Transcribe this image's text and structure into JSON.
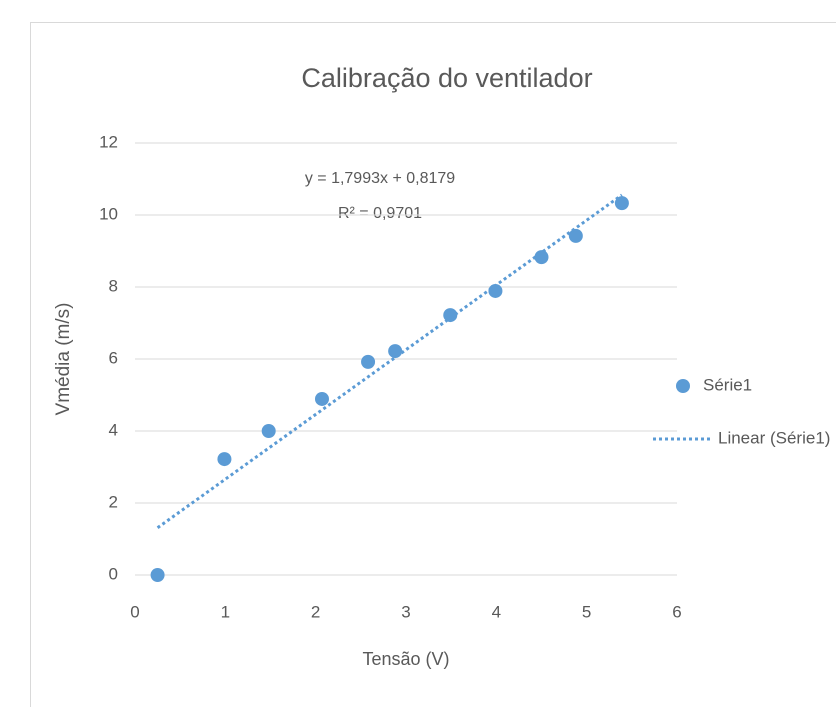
{
  "chart_data": {
    "type": "scatter",
    "title": "Calibração do ventilador",
    "x_label": "Tensão (V)",
    "y_label": "Vmédia (m/s)",
    "series": [
      {
        "name": "Série1",
        "color": "#5b9bd5",
        "x": [
          0.25,
          0.99,
          1.48,
          2.07,
          2.58,
          2.88,
          3.49,
          3.99,
          4.5,
          4.88,
          5.39
        ],
        "y": [
          0,
          3.22,
          4.0,
          4.89,
          5.92,
          6.22,
          7.22,
          7.89,
          8.83,
          9.42,
          10.33
        ]
      }
    ],
    "trendline": {
      "name": "Linear (Série1)",
      "kind": "linear",
      "color": "#5b9bd5",
      "equation": "y = 1,7993x + 0,8179",
      "r_squared": "R² = 0,9701"
    },
    "xlim": [
      0,
      6
    ],
    "xticks": [
      0,
      1,
      2,
      3,
      4,
      5,
      6
    ],
    "ylim": [
      0,
      12
    ],
    "yticks": [
      0,
      2,
      4,
      6,
      8,
      10,
      12
    ],
    "grid": true,
    "legend": "right"
  }
}
